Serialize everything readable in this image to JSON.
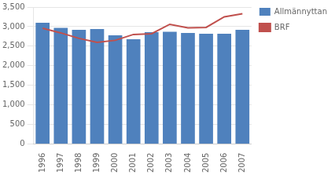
{
  "chart_data": {
    "type": "bar",
    "categories": [
      "1996",
      "1997",
      "1998",
      "1999",
      "2000",
      "2001",
      "2002",
      "2003",
      "2004",
      "2005",
      "2006",
      "2007"
    ],
    "series": [
      {
        "name": "Allmännyttan",
        "type": "bar",
        "color": "#4F81BD",
        "values": [
          3100,
          2970,
          2920,
          2940,
          2780,
          2680,
          2860,
          2870,
          2840,
          2820,
          2820,
          2920
        ]
      },
      {
        "name": "BRF",
        "type": "line",
        "color": "#C0504D",
        "values": [
          2960,
          2840,
          2700,
          2600,
          2650,
          2800,
          2820,
          3060,
          2970,
          2980,
          3250,
          3330
        ]
      }
    ],
    "ylim": [
      0,
      3500
    ],
    "yticks": [
      0,
      500,
      1000,
      1500,
      2000,
      2500,
      3000,
      3500
    ],
    "grid": true,
    "legend": "right"
  }
}
